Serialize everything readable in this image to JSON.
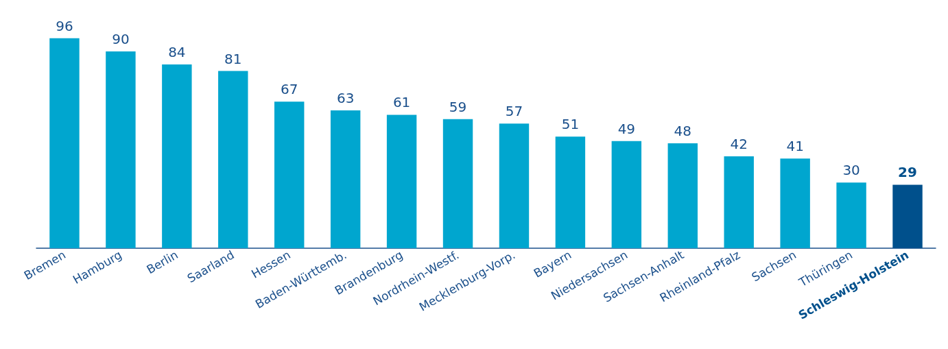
{
  "chart_data": {
    "type": "bar",
    "categories": [
      "Bremen",
      "Hamburg",
      "Berlin",
      "Saarland",
      "Hessen",
      "Baden-Württemb.",
      "Brandenburg",
      "Nordrhein-Westf.",
      "Mecklenburg-Vorp.",
      "Bayern",
      "Niedersachsen",
      "Sachsen-Anhalt",
      "Rheinland-Pfalz",
      "Sachsen",
      "Thüringen",
      "Schleswig-Holstein"
    ],
    "values": [
      96,
      90,
      84,
      81,
      67,
      63,
      61,
      59,
      57,
      51,
      49,
      48,
      42,
      41,
      30,
      29
    ],
    "colors": [
      "#00a6cf",
      "#00a6cf",
      "#00a6cf",
      "#00a6cf",
      "#00a6cf",
      "#00a6cf",
      "#00a6cf",
      "#00a6cf",
      "#00a6cf",
      "#00a6cf",
      "#00a6cf",
      "#00a6cf",
      "#00a6cf",
      "#00a6cf",
      "#00a6cf",
      "#00508c"
    ],
    "data_labels": true
  }
}
